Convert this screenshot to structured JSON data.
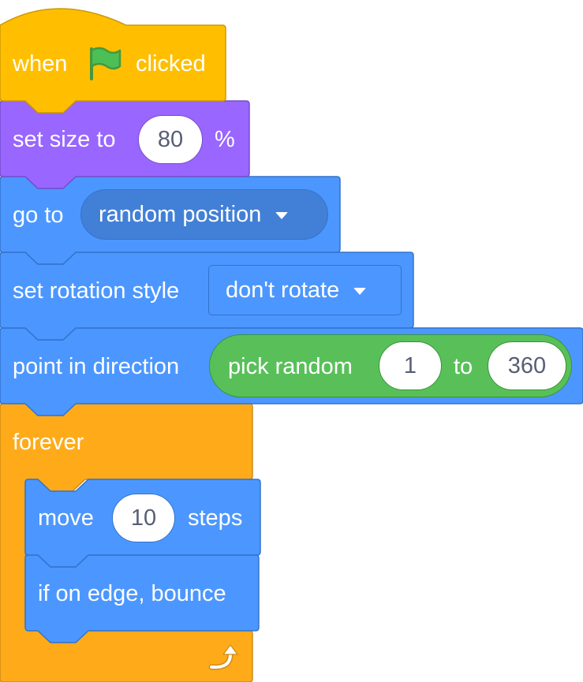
{
  "hat": {
    "label_when": "when",
    "label_clicked": "clicked",
    "icon": "green-flag-icon",
    "color": "#ffbf00"
  },
  "set_size": {
    "label_prefix": "set size to",
    "value": "80",
    "label_suffix": "%",
    "color": "#9966ff"
  },
  "go_to": {
    "label": "go to",
    "menu_value": "random position",
    "color": "#4c97ff"
  },
  "set_rotation_style": {
    "label": "set rotation style",
    "menu_value": "don't rotate",
    "color": "#4c97ff"
  },
  "point_in_direction": {
    "label": "point in direction",
    "color": "#4c97ff",
    "pick_random": {
      "label": "pick random",
      "from": "1",
      "to_label": "to",
      "to": "360",
      "color": "#59c059"
    }
  },
  "forever": {
    "label": "forever",
    "icon": "loop-arrow-icon",
    "color": "#ffab19",
    "body": {
      "move": {
        "label_prefix": "move",
        "value": "10",
        "label_suffix": "steps"
      },
      "bounce": {
        "label": "if on edge, bounce"
      }
    }
  }
}
